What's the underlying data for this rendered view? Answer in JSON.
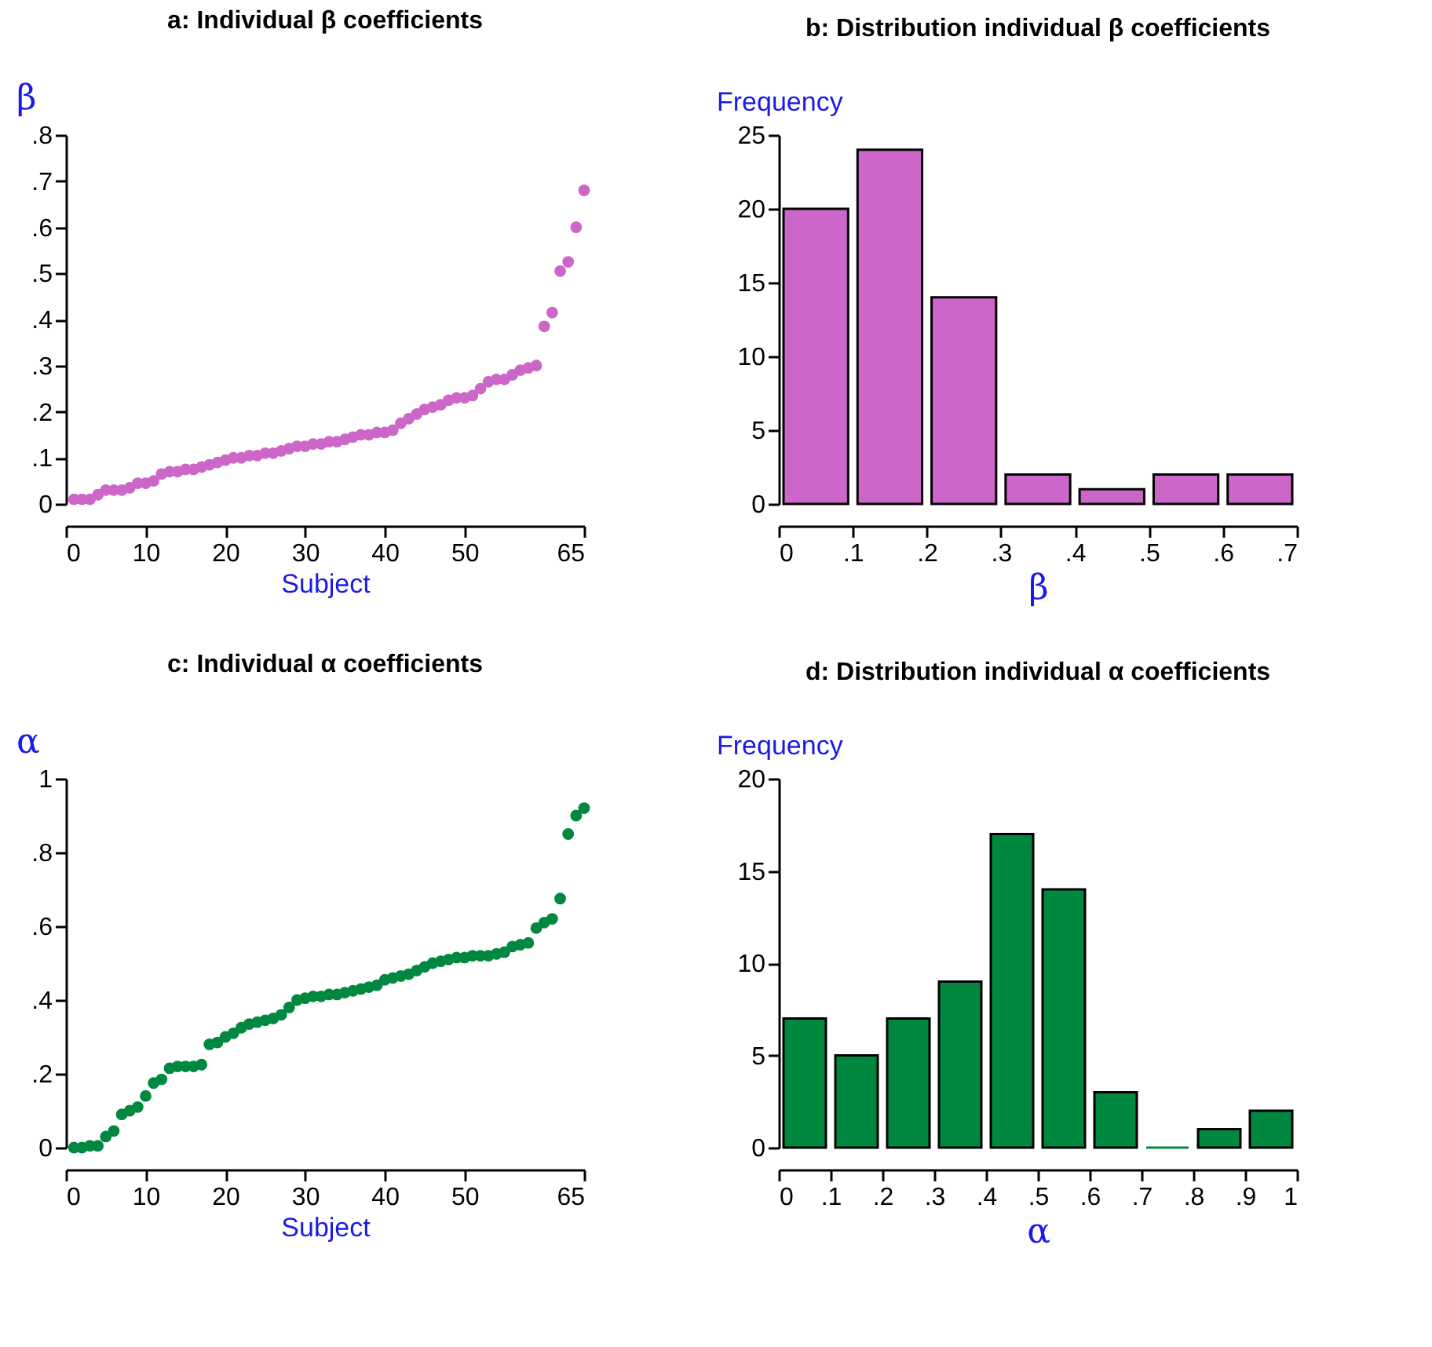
{
  "chart_data": [
    {
      "type": "scatter",
      "title": "a: Individual β coefficients",
      "xlabel": "Subject",
      "ylabel": "β",
      "marker": "circle",
      "x": [
        1,
        2,
        3,
        4,
        5,
        6,
        7,
        8,
        9,
        10,
        11,
        12,
        13,
        14,
        15,
        16,
        17,
        18,
        19,
        20,
        21,
        22,
        23,
        24,
        25,
        26,
        27,
        28,
        29,
        30,
        31,
        32,
        33,
        34,
        35,
        36,
        37,
        38,
        39,
        40,
        41,
        42,
        43,
        44,
        45,
        46,
        47,
        48,
        49,
        50,
        51,
        52,
        53,
        54,
        55,
        56,
        57,
        58,
        59,
        60,
        61,
        62,
        63,
        64,
        65
      ],
      "series": [
        {
          "color": "#cc66c8",
          "values": [
            0.01,
            0.01,
            0.01,
            0.02,
            0.03,
            0.03,
            0.03,
            0.035,
            0.045,
            0.045,
            0.05,
            0.065,
            0.07,
            0.07,
            0.075,
            0.075,
            0.08,
            0.085,
            0.09,
            0.095,
            0.1,
            0.1,
            0.105,
            0.105,
            0.11,
            0.11,
            0.115,
            0.12,
            0.125,
            0.125,
            0.13,
            0.13,
            0.135,
            0.135,
            0.14,
            0.145,
            0.15,
            0.15,
            0.155,
            0.155,
            0.16,
            0.175,
            0.185,
            0.195,
            0.205,
            0.21,
            0.215,
            0.225,
            0.23,
            0.23,
            0.235,
            0.25,
            0.265,
            0.27,
            0.27,
            0.28,
            0.29,
            0.295,
            0.3,
            0.385,
            0.415,
            0.505,
            0.525,
            0.6,
            0.68
          ]
        }
      ],
      "xlim": [
        0,
        65
      ],
      "xticks": [
        0,
        10,
        20,
        30,
        40,
        50,
        65
      ],
      "ylim": [
        0,
        0.8
      ],
      "yticks": [
        0,
        {
          "value": 0.1,
          "label": ".1"
        },
        {
          "value": 0.2,
          "label": ".2"
        },
        {
          "value": 0.3,
          "label": ".3"
        },
        {
          "value": 0.4,
          "label": ".4"
        },
        {
          "value": 0.5,
          "label": ".5"
        },
        {
          "value": 0.6,
          "label": ".6"
        },
        {
          "value": 0.7,
          "label": ".7"
        },
        {
          "value": 0.8,
          "label": ".8"
        }
      ]
    },
    {
      "type": "histogram",
      "title": "b: Distribution individual β coefficients",
      "xlabel": "β",
      "ylabel": "Frequency",
      "color": "#cc66c8",
      "bins": [
        0,
        0.1,
        0.2,
        0.3,
        0.4,
        0.5,
        0.6,
        0.7
      ],
      "values": [
        20,
        24,
        14,
        2,
        1,
        2,
        2
      ],
      "xlim": [
        0,
        0.7
      ],
      "xticks": [
        0,
        {
          "value": 0.1,
          "label": ".1"
        },
        {
          "value": 0.2,
          "label": ".2"
        },
        {
          "value": 0.3,
          "label": ".3"
        },
        {
          "value": 0.4,
          "label": ".4"
        },
        {
          "value": 0.5,
          "label": ".5"
        },
        {
          "value": 0.6,
          "label": ".6"
        },
        {
          "value": 0.7,
          "label": ".7"
        }
      ],
      "ylim": [
        0,
        25
      ],
      "yticks": [
        0,
        5,
        10,
        15,
        20,
        25
      ]
    },
    {
      "type": "scatter",
      "title": "c: Individual α coefficients",
      "xlabel": "Subject",
      "ylabel": "α",
      "marker": "circle",
      "x": [
        1,
        2,
        3,
        4,
        5,
        6,
        7,
        8,
        9,
        10,
        11,
        12,
        13,
        14,
        15,
        16,
        17,
        18,
        19,
        20,
        21,
        22,
        23,
        24,
        25,
        26,
        27,
        28,
        29,
        30,
        31,
        32,
        33,
        34,
        35,
        36,
        37,
        38,
        39,
        40,
        41,
        42,
        43,
        44,
        45,
        46,
        47,
        48,
        49,
        50,
        51,
        52,
        53,
        54,
        55,
        56,
        57,
        58,
        59,
        60,
        61,
        62,
        63,
        64,
        65
      ],
      "series": [
        {
          "color": "#008840",
          "values": [
            0,
            0,
            0.005,
            0.005,
            0.03,
            0.045,
            0.09,
            0.1,
            0.11,
            0.14,
            0.175,
            0.185,
            0.215,
            0.22,
            0.22,
            0.22,
            0.225,
            0.28,
            0.285,
            0.3,
            0.31,
            0.325,
            0.335,
            0.34,
            0.345,
            0.35,
            0.36,
            0.38,
            0.4,
            0.405,
            0.41,
            0.41,
            0.415,
            0.415,
            0.42,
            0.425,
            0.43,
            0.435,
            0.44,
            0.455,
            0.46,
            0.465,
            0.47,
            0.48,
            0.49,
            0.5,
            0.505,
            0.51,
            0.515,
            0.515,
            0.52,
            0.52,
            0.52,
            0.525,
            0.53,
            0.545,
            0.55,
            0.555,
            0.595,
            0.61,
            0.62,
            0.675,
            0.85,
            0.9,
            0.92
          ]
        }
      ],
      "xlim": [
        0,
        65
      ],
      "xticks": [
        0,
        10,
        20,
        30,
        40,
        50,
        65
      ],
      "ylim": [
        0,
        1
      ],
      "yticks": [
        0,
        {
          "value": 0.2,
          "label": ".2"
        },
        {
          "value": 0.4,
          "label": ".4"
        },
        {
          "value": 0.6,
          "label": ".6"
        },
        {
          "value": 0.8,
          "label": ".8"
        },
        1
      ]
    },
    {
      "type": "histogram",
      "title": "d: Distribution individual α coefficients",
      "xlabel": "α",
      "ylabel": "Frequency",
      "color": "#008840",
      "bins": [
        0,
        0.1,
        0.2,
        0.3,
        0.4,
        0.5,
        0.6,
        0.7,
        0.8,
        0.9,
        1
      ],
      "values": [
        7,
        5,
        7,
        9,
        17,
        14,
        3,
        0,
        1,
        2
      ],
      "xlim": [
        0,
        1
      ],
      "xticks": [
        0,
        {
          "value": 0.1,
          "label": ".1"
        },
        {
          "value": 0.2,
          "label": ".2"
        },
        {
          "value": 0.3,
          "label": ".3"
        },
        {
          "value": 0.4,
          "label": ".4"
        },
        {
          "value": 0.5,
          "label": ".5"
        },
        {
          "value": 0.6,
          "label": ".6"
        },
        {
          "value": 0.7,
          "label": ".7"
        },
        {
          "value": 0.8,
          "label": ".8"
        },
        {
          "value": 0.9,
          "label": ".9"
        },
        1
      ],
      "ylim": [
        0,
        20
      ],
      "yticks": [
        0,
        5,
        10,
        15,
        20
      ]
    }
  ]
}
